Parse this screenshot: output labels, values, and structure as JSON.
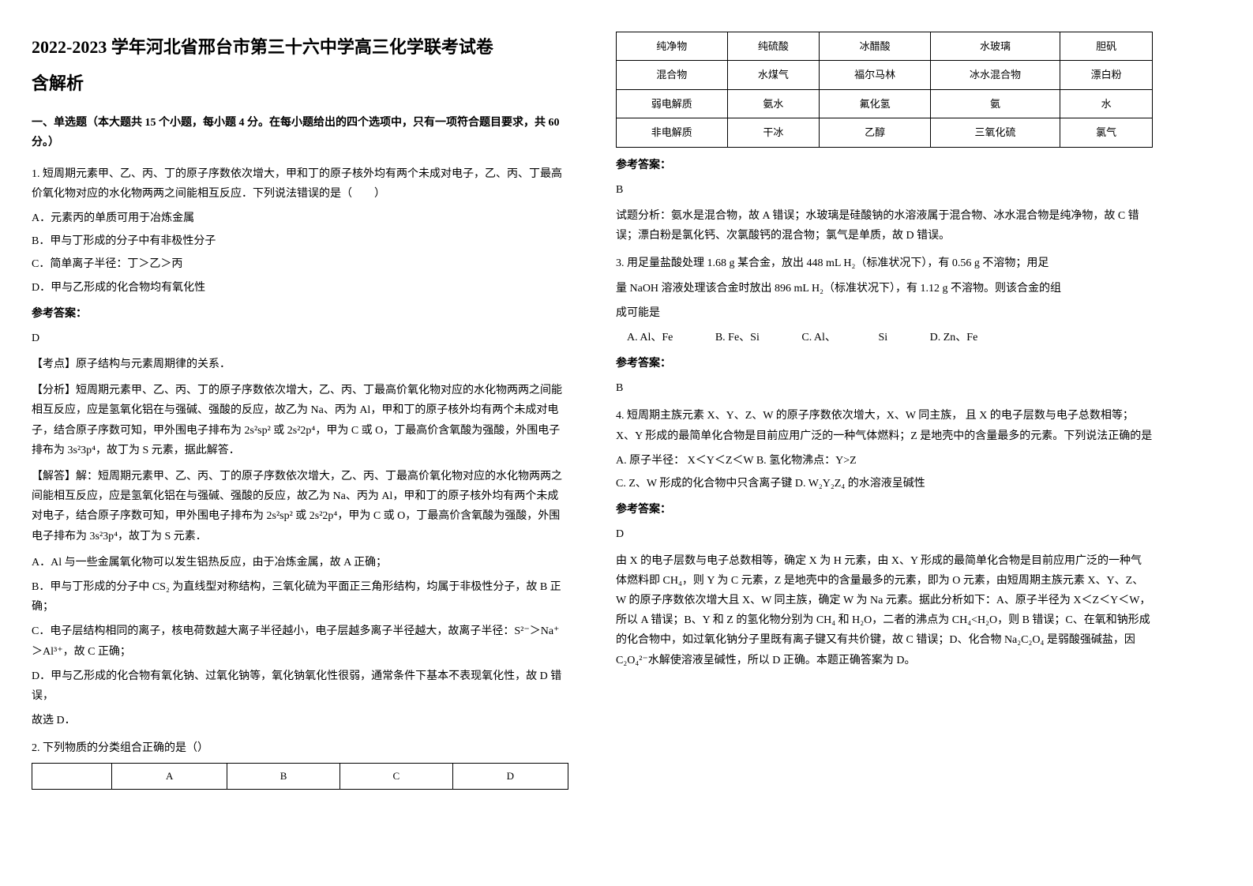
{
  "title_line1": "2022-2023 学年河北省邢台市第三十六中学高三化学联考试卷",
  "title_line2": "含解析",
  "section1_header": "一、单选题（本大题共 15 个小题，每小题 4 分。在每小题给出的四个选项中，只有一项符合题目要求，共 60 分。）",
  "q1": {
    "text": "1. 短周期元素甲、乙、丙、丁的原子序数依次增大，甲和丁的原子核外均有两个未成对电子，乙、丙、丁最高价氧化物对应的水化物两两之间能相互反应．下列说法错误的是（　　）",
    "opt_a": "A．元素丙的单质可用于冶炼金属",
    "opt_b": "B．甲与丁形成的分子中有非极性分子",
    "opt_c": "C．简单离子半径：丁＞乙＞丙",
    "opt_d": "D．甲与乙形成的化合物均有氧化性",
    "answer_label": "参考答案：",
    "answer": "D",
    "point_label": "【考点】原子结构与元素周期律的关系．",
    "analysis_label": "【分析】短周期元素甲、乙、丙、丁的原子序数依次增大，乙、丙、丁最高价氧化物对应的水化物两两之间能相互反应，应是氢氧化铝在与强碱、强酸的反应，故乙为 Na、丙为 Al，甲和丁的原子核外均有两个未成对电子，结合原子序数可知，甲外围电子排布为 2s²sp² 或 2s²2p⁴，甲为 C 或 O，丁最高价含氧酸为强酸，外围电子排布为 3s²3p⁴，故丁为 S 元素，据此解答．",
    "solve_label": "【解答】解：短周期元素甲、乙、丙、丁的原子序数依次增大，乙、丙、丁最高价氧化物对应的水化物两两之间能相互反应，应是氢氧化铝在与强碱、强酸的反应，故乙为 Na、丙为 Al，甲和丁的原子核外均有两个未成对电子，结合原子序数可知，甲外围电子排布为 2s²sp² 或 2s²2p⁴，甲为 C 或 O，丁最高价含氧酸为强酸，外围电子排布为 3s²3p⁴，故丁为 S 元素．",
    "solve_a": "A．Al 与一些金属氧化物可以发生铝热反应，由于冶炼金属，故 A 正确；",
    "solve_b": "B．甲与丁形成的分子中 CS₂ 为直线型对称结构，三氧化硫为平面正三角形结构，均属于非极性分子，故 B 正确；",
    "solve_c": "C．电子层结构相同的离子，核电荷数越大离子半径越小，电子层越多离子半径越大，故离子半径：S²⁻＞Na⁺＞Al³⁺，故 C 正确；",
    "solve_d": "D．甲与乙形成的化合物有氧化钠、过氧化钠等，氧化钠氧化性很弱，通常条件下基本不表现氧化性，故 D 错误，",
    "conclusion": "故选 D．"
  },
  "q2": {
    "text": "2. 下列物质的分类组合正确的是（）",
    "header_table": {
      "columns": [
        "",
        "A",
        "B",
        "C",
        "D"
      ]
    },
    "data_table": {
      "rows": [
        [
          "纯净物",
          "纯硫酸",
          "冰醋酸",
          "水玻璃",
          "胆矾"
        ],
        [
          "混合物",
          "水煤气",
          "福尔马林",
          "冰水混合物",
          "漂白粉"
        ],
        [
          "弱电解质",
          "氨水",
          "氟化氢",
          "氨",
          "水"
        ],
        [
          "非电解质",
          "干冰",
          "乙醇",
          "三氧化硫",
          "氯气"
        ]
      ]
    },
    "answer_label": "参考答案：",
    "answer": "B",
    "analysis": "试题分析：氨水是混合物，故 A 错误；水玻璃是硅酸钠的水溶液属于混合物、冰水混合物是纯净物，故 C 错误；漂白粉是氯化钙、次氯酸钙的混合物；氯气是单质，故 D 错误。"
  },
  "q3": {
    "text1": "3. 用足量盐酸处理 1.68 g 某合金，放出 448 mL H₂（标准状况下），有 0.56 g 不溶物；用足",
    "text2": "量 NaOH 溶液处理该合金时放出 896 mL H₂（标准状况下），有 1.12 g 不溶物。则该合金的组",
    "text3": "成可能是",
    "opt_a": "A. Al、Fe",
    "opt_b": "B. Fe、Si",
    "opt_c": "C. Al、",
    "opt_c2": "Si",
    "opt_d": "D. Zn、Fe",
    "answer_label": "参考答案：",
    "answer": "B"
  },
  "q4": {
    "text": "4. 短周期主族元素 X、Y、Z、W 的原子序数依次增大，X、W 同主族， 且 X 的电子层数与电子总数相等；X、Y 形成的最简单化合物是目前应用广泛的一种气体燃料；Z 是地壳中的含量最多的元素。下列说法正确的是",
    "opt_a": "A. 原子半径： X＜Y＜Z＜W   B. 氢化物沸点：Y>Z",
    "opt_c": "C. Z、W 形成的化合物中只含离子键        D. W₂Y₂Z₄ 的水溶液呈碱性",
    "answer_label": "参考答案：",
    "answer": "D",
    "analysis": "由 X 的电子层数与电子总数相等，确定 X 为 H 元素，由 X、Y 形成的最简单化合物是目前应用广泛的一种气体燃料即 CH₄，则 Y 为 C 元素，Z 是地壳中的含量最多的元素，即为 O 元素，由短周期主族元素 X、Y、Z、W 的原子序数依次增大且 X、W 同主族，确定 W 为 Na 元素。据此分析如下：A、原子半径为 X＜Z＜Y＜W，所以 A 错误；B、Y 和 Z 的氢化物分别为 CH₄ 和 H₂O，二者的沸点为 CH₄<H₂O，则 B 错误；C、在氧和钠形成的化合物中，如过氧化钠分子里既有离子键又有共价键，故 C 错误；D、化合物 Na₂C₂O₄ 是弱酸强碱盐，因 C₂O₄²⁻水解使溶液呈碱性，所以 D 正确。本题正确答案为 D。"
  }
}
